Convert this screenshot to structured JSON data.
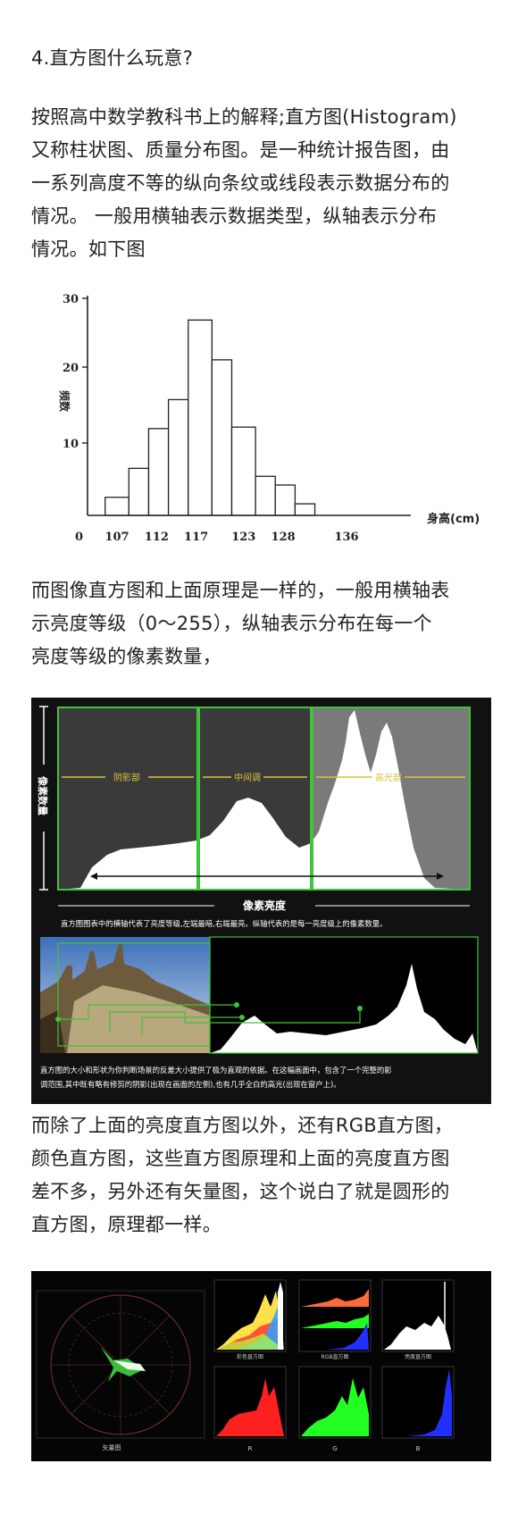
{
  "heading": "4.直方图什么玩意?",
  "para1": {
    "lines": [
      "按照高中数学教科书上的解释;直方图(Histogram)",
      "又称柱状图、质量分布图。是一种统计报告图，由",
      "一系列高度不等的纵向条纹或线段表示数据分布的",
      "情况。 一般用横轴表示数据类型，纵轴表示分布",
      "情况。如下图"
    ]
  },
  "chart_data": {
    "type": "bar",
    "title": "",
    "xlabel": "身高(cm)",
    "ylabel": "频数",
    "ylim": [
      0,
      30
    ],
    "yticks": [
      "10",
      "20",
      "30"
    ],
    "x_origin_label": "0",
    "xtick_labels": [
      "107",
      "112",
      "117",
      "123",
      "128",
      "136"
    ],
    "bins": [
      {
        "from": 105.5,
        "to": 108.5,
        "value": 2.5
      },
      {
        "from": 108.5,
        "to": 111,
        "value": 6.5
      },
      {
        "from": 111,
        "to": 113.5,
        "value": 12
      },
      {
        "from": 113.5,
        "to": 116,
        "value": 16
      },
      {
        "from": 116,
        "to": 119,
        "value": 27
      },
      {
        "from": 119,
        "to": 121.5,
        "value": 21.5
      },
      {
        "from": 121.5,
        "to": 124.5,
        "value": 12.2
      },
      {
        "from": 124.5,
        "to": 127,
        "value": 5.4
      },
      {
        "from": 127,
        "to": 129.5,
        "value": 4.2
      },
      {
        "from": 129.5,
        "to": 132,
        "value": 1.6
      }
    ],
    "grid": false
  },
  "para2": {
    "lines": [
      "而图像直方图和上面原理是一样的，一般用横轴表",
      "示亮度等级（0～255），纵轴表示分布在每一个",
      "亮度等级的像素数量，"
    ]
  },
  "figure2": {
    "ylabel": "像素数量",
    "zone_labels": [
      "阴影部",
      "中间调",
      "高光部"
    ],
    "xlabel": "像素亮度",
    "caption1": "直方图图表中的横轴代表了亮度等级,左端最暗,右端最亮。纵轴代表的是每一亮度级上的像素数量。",
    "caption2_lines": [
      "直方图的大小和形状为你判断场景的反差大小提供了极为直观的依据。在这幅画面中，包含了一个完整的影",
      "调范围,其中既有略有修剪的阴影(出现在画面的左侧),也有几乎全白的高光(出现在窗户上)。"
    ],
    "colors": {
      "background": "#111111",
      "zone_bg": "#3a3a3a",
      "highlight_bg": "#7a7a7a",
      "green": "#3fc43a",
      "yellow": "#d8c23a"
    }
  },
  "para3": {
    "lines": [
      "而除了上面的亮度直方图以外，还有RGB直方图，",
      "颜色直方图，这些直方图原理和上面的亮度直方图",
      "差不多，另外还有矢量图，这个说白了就是圆形的",
      "直方图，原理都一样。"
    ]
  },
  "figure3": {
    "vectorscope_label": "矢量图",
    "panel_labels": [
      "彩色直方图",
      "RGB直方图",
      "亮度直方图",
      "R",
      "G",
      "B"
    ],
    "colors": {
      "red": "#ff2020",
      "green": "#22ff22",
      "blue": "#2230ff",
      "white": "#ffffff"
    }
  }
}
